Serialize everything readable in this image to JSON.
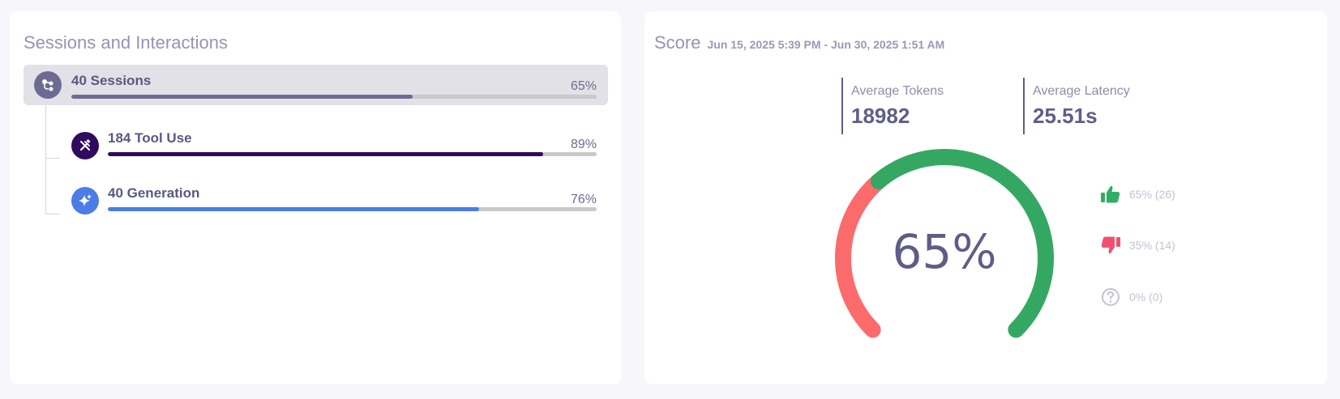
{
  "sessions_panel": {
    "title": "Sessions and Interactions",
    "rows": [
      {
        "label": "40 Sessions",
        "percent_label": "65%",
        "progress": 0.65,
        "icon": "flow-icon",
        "color": "#6e6b93"
      },
      {
        "label": "184 Tool Use",
        "percent_label": "89%",
        "progress": 0.89,
        "icon": "tools-icon",
        "color": "#2f0a5e"
      },
      {
        "label": "40 Generation",
        "percent_label": "76%",
        "progress": 0.76,
        "icon": "sparkle-icon",
        "color": "#4a7de6"
      }
    ]
  },
  "score_panel": {
    "title": "Score",
    "date_range": "Jun 15, 2025 5:39 PM - Jun 30, 2025 1:51 AM",
    "metrics": [
      {
        "label": "Average Tokens",
        "value": "18982"
      },
      {
        "label": "Average Latency",
        "value": "25.51s"
      }
    ],
    "gauge": {
      "value_label": "65%",
      "positive_fraction": 0.65,
      "negative_fraction": 0.35,
      "positive_color": "#34a862",
      "negative_color": "#fc6b6b"
    },
    "legend": [
      {
        "icon": "thumbs-up-icon",
        "label": "65% (26)",
        "color": "#2fae66"
      },
      {
        "icon": "thumbs-down-icon",
        "label": "35% (14)",
        "color": "#f0506e"
      },
      {
        "icon": "question-icon",
        "label": "0% (0)",
        "color": "#c3c2d5"
      }
    ]
  }
}
